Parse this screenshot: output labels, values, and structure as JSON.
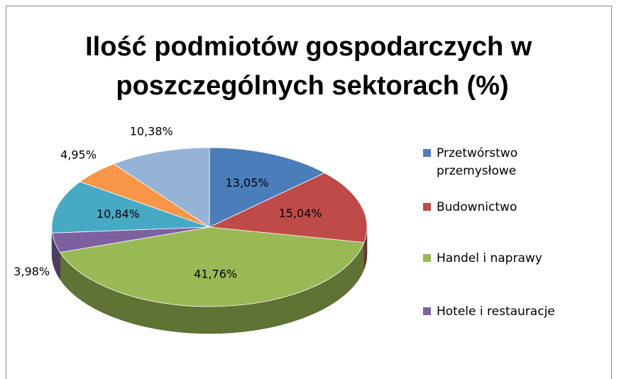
{
  "chart_data": {
    "type": "pie",
    "title": "Ilość podmiotów gospodarczych w poszczególnych sektorach (%)",
    "categories": [
      "Przetwórstwo przemysłowe",
      "Budownictwo",
      "Handel i naprawy",
      "Hotele i restauracje",
      null,
      null,
      null
    ],
    "values": [
      13.05,
      15.04,
      41.76,
      3.98,
      10.84,
      4.95,
      10.38
    ],
    "value_labels": [
      "13,05%",
      "15,04%",
      "41,76%",
      "3,98%",
      "10,84%",
      "4,95%",
      "10,38%"
    ],
    "colors": [
      "#4a7ebb",
      "#be4b48",
      "#98b954",
      "#7d60a0",
      "#46aac5",
      "#f79646",
      "#95b3d7"
    ],
    "legend": "right"
  }
}
